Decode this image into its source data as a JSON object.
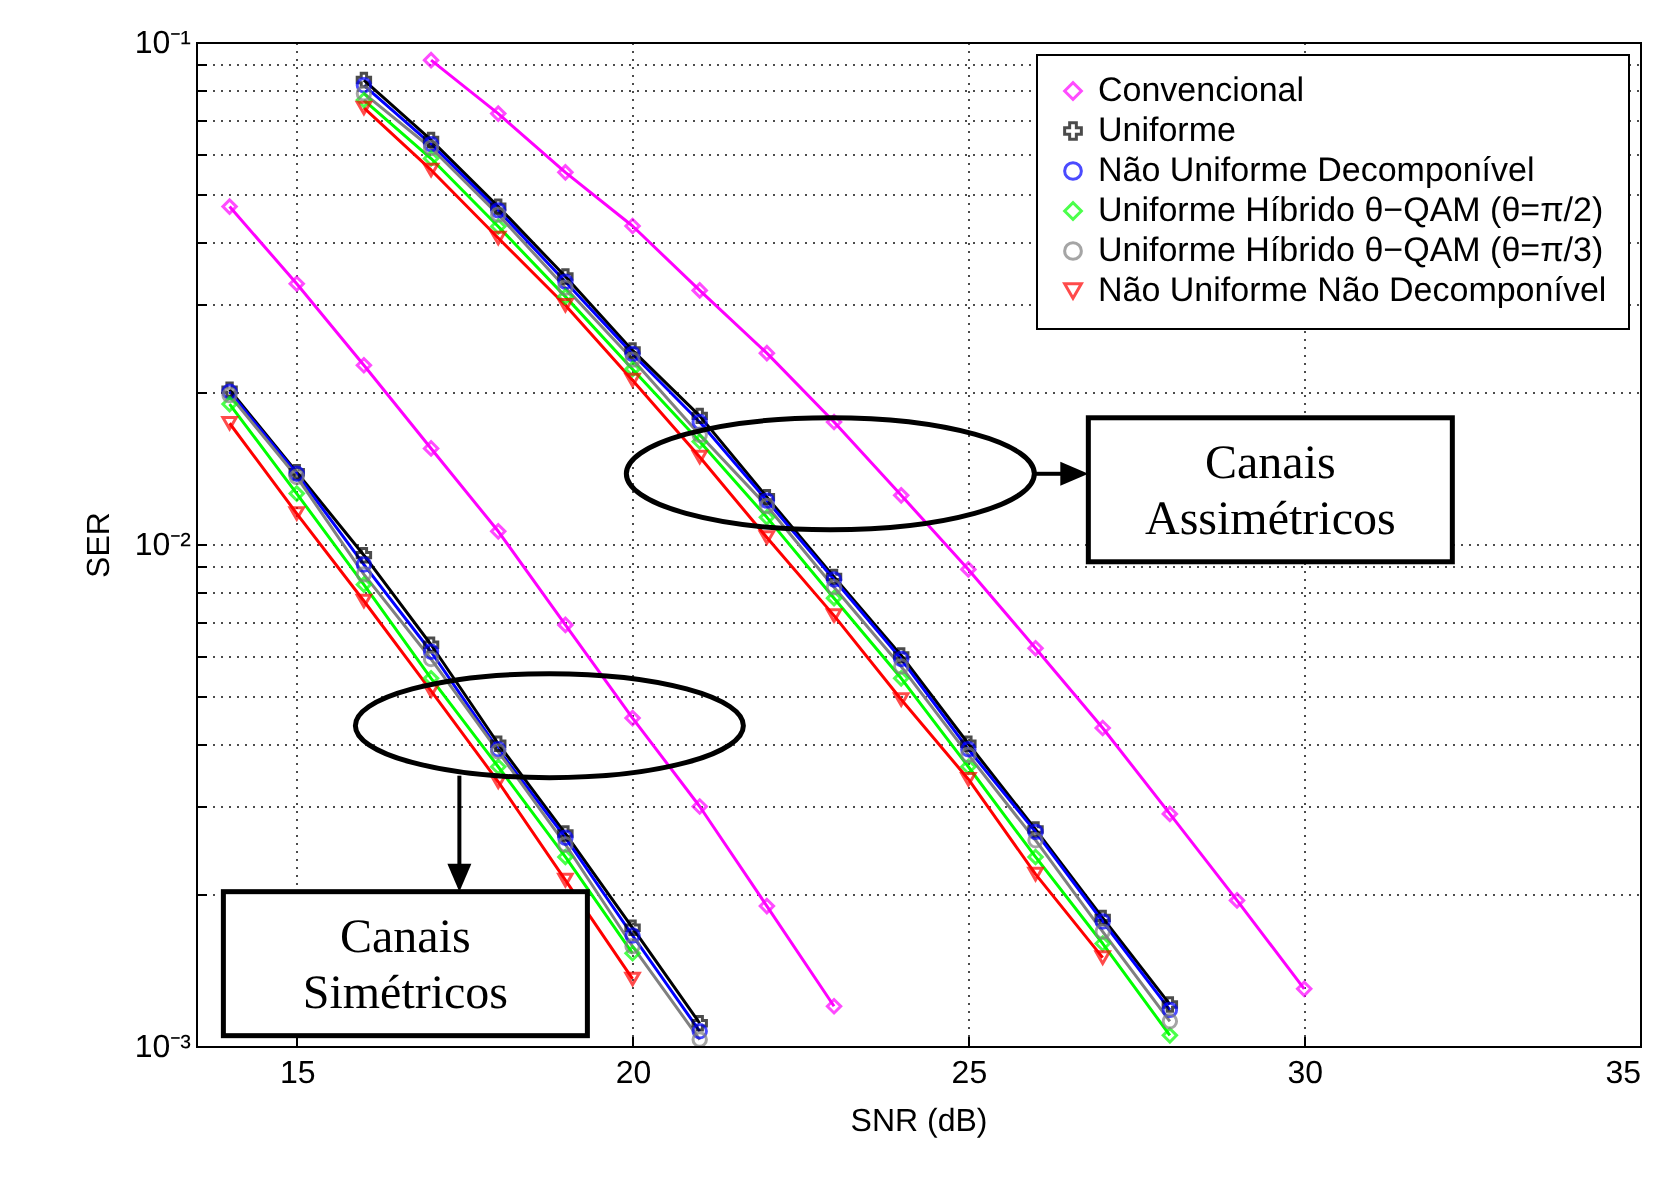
{
  "chart_data": {
    "type": "line",
    "xlabel": "SNR (dB)",
    "ylabel": "SER",
    "log": "y",
    "grid": true,
    "legend": "top right",
    "xlim": [
      13.5,
      35
    ],
    "xticks": [
      15,
      20,
      25,
      30,
      35
    ],
    "ylim": [
      0.001,
      0.1
    ],
    "yticks": [
      {
        "value": 0.001,
        "label": "10⁻³"
      },
      {
        "value": 0.002,
        "label": null
      },
      {
        "value": 0.003,
        "label": null
      },
      {
        "value": 0.004,
        "label": null
      },
      {
        "value": 0.005,
        "label": null
      },
      {
        "value": 0.006,
        "label": null
      },
      {
        "value": 0.007,
        "label": null
      },
      {
        "value": 0.008,
        "label": null
      },
      {
        "value": 0.009,
        "label": null
      },
      {
        "value": 0.01,
        "label": "10⁻²"
      },
      {
        "value": 0.02,
        "label": null
      },
      {
        "value": 0.03,
        "label": null
      },
      {
        "value": 0.04,
        "label": null
      },
      {
        "value": 0.05,
        "label": null
      },
      {
        "value": 0.06,
        "label": null
      },
      {
        "value": 0.07,
        "label": null
      },
      {
        "value": 0.08,
        "label": null
      },
      {
        "value": 0.09,
        "label": null
      },
      {
        "value": 0.1,
        "label": "10⁻¹"
      }
    ],
    "series": [
      {
        "name": "Convencional",
        "color": "#ff00ff",
        "marker": "diamond",
        "x": [
          17,
          18,
          19,
          20,
          21,
          22,
          23,
          24,
          25,
          26,
          27,
          28,
          29,
          30
        ],
        "values": [
          0.092,
          0.072,
          0.055,
          0.043,
          0.032,
          0.024,
          0.0175,
          0.0125,
          0.0089,
          0.0062,
          0.0043,
          0.0029,
          0.00195,
          0.0013
        ]
      },
      {
        "color": "#ff00ff",
        "marker": "diamond",
        "x": [
          14,
          15,
          16,
          17,
          18,
          19,
          20,
          21,
          22,
          23
        ],
        "values": [
          0.047,
          0.033,
          0.0227,
          0.0155,
          0.0106,
          0.0069,
          0.0045,
          0.003,
          0.0019,
          0.0012
        ]
      },
      {
        "name": "Uniforme",
        "color": "#000000",
        "marker": "cross",
        "x": [
          16,
          17,
          18,
          19,
          20,
          21,
          22,
          23,
          24,
          25,
          26,
          27,
          28
        ],
        "values": [
          0.084,
          0.0638,
          0.047,
          0.0341,
          0.0243,
          0.018,
          0.0124,
          0.0086,
          0.006,
          0.004,
          0.0027,
          0.0018,
          0.00121
        ]
      },
      {
        "color": "#000000",
        "marker": "cross",
        "x": [
          14,
          15,
          16,
          17,
          18,
          19,
          20,
          21
        ],
        "values": [
          0.0203,
          0.0139,
          0.0095,
          0.0063,
          0.004,
          0.00265,
          0.00172,
          0.00111
        ]
      },
      {
        "name": "Não Uniforme Decomponível",
        "color": "#0000ff",
        "marker": "circle",
        "x": [
          16,
          17,
          18,
          19,
          20,
          21,
          22,
          23,
          24,
          25,
          26,
          27,
          28
        ],
        "values": [
          0.082,
          0.0626,
          0.0462,
          0.0333,
          0.0239,
          0.0175,
          0.0122,
          0.0085,
          0.0059,
          0.0039,
          0.00267,
          0.00177,
          0.00118
        ]
      },
      {
        "color": "#0000ff",
        "marker": "circle",
        "x": [
          14,
          15,
          16,
          17,
          18,
          19,
          20,
          21
        ],
        "values": [
          0.0201,
          0.0138,
          0.0091,
          0.0061,
          0.0039,
          0.0026,
          0.00166,
          0.00107
        ]
      },
      {
        "name": "Uniforme Híbrido θ−QAM (θ=π/2)",
        "color": "#00ff00",
        "marker": "diamond",
        "x": [
          16,
          17,
          18,
          19,
          20,
          21,
          22,
          23,
          24,
          25,
          26,
          27,
          28
        ],
        "values": [
          0.0766,
          0.0586,
          0.0429,
          0.0311,
          0.0223,
          0.016,
          0.0113,
          0.0078,
          0.0054,
          0.0036,
          0.00238,
          0.0016,
          0.00105
        ]
      },
      {
        "color": "#00ff00",
        "marker": "diamond",
        "x": [
          14,
          15,
          16,
          17,
          18,
          19,
          20
        ],
        "values": [
          0.019,
          0.0126,
          0.0083,
          0.0054,
          0.0036,
          0.00238,
          0.00153
        ]
      },
      {
        "name": "Uniforme Híbrido θ−QAM (θ=π/3)",
        "color": "#808080",
        "marker": "circle",
        "x": [
          16,
          17,
          18,
          19,
          20,
          21,
          22,
          23,
          24,
          25,
          26,
          27,
          28
        ],
        "values": [
          0.079,
          0.0615,
          0.0453,
          0.0324,
          0.0233,
          0.0165,
          0.0119,
          0.0082,
          0.0057,
          0.0038,
          0.00257,
          0.00169,
          0.00112
        ]
      },
      {
        "color": "#808080",
        "marker": "circle",
        "x": [
          14,
          15,
          16,
          17,
          18,
          19,
          20,
          21
        ],
        "values": [
          0.0198,
          0.0136,
          0.0087,
          0.0059,
          0.00386,
          0.00252,
          0.00158,
          0.00103
        ]
      },
      {
        "name": "Não Uniforme Não Decomponível",
        "color": "#ff0000",
        "marker": "triangle",
        "x": [
          16,
          17,
          18,
          19,
          20,
          21,
          22,
          23,
          24,
          25,
          26,
          27
        ],
        "values": [
          0.0739,
          0.0556,
          0.0407,
          0.0299,
          0.0212,
          0.0149,
          0.0103,
          0.0072,
          0.0049,
          0.0034,
          0.0022,
          0.0015
        ]
      },
      {
        "color": "#ff0000",
        "marker": "triangle",
        "x": [
          14,
          15,
          16,
          17,
          18,
          19,
          20
        ],
        "values": [
          0.0174,
          0.0115,
          0.0077,
          0.0051,
          0.00336,
          0.00214,
          0.00136
        ]
      }
    ],
    "annotations": [
      "Canais Assimétricos",
      "Canais Simétricos"
    ]
  }
}
